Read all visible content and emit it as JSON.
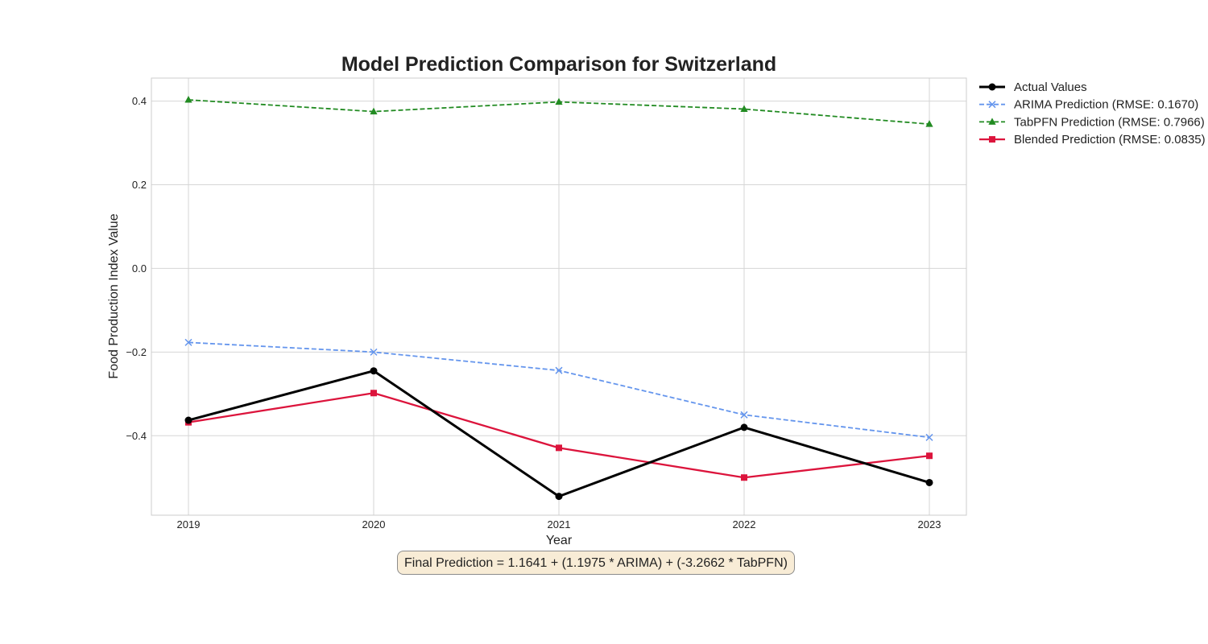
{
  "chart_data": {
    "type": "line",
    "title": "Model Prediction Comparison for Switzerland",
    "xlabel": "Year",
    "ylabel": "Food Production Index Value",
    "x": [
      2019,
      2020,
      2021,
      2022,
      2023
    ],
    "xticks": [
      "2019",
      "2020",
      "2021",
      "2022",
      "2023"
    ],
    "yticks": [
      "−0.4",
      "−0.2",
      "0.0",
      "0.2",
      "0.4"
    ],
    "ytick_values": [
      -0.4,
      -0.2,
      0.0,
      0.2,
      0.4
    ],
    "xlim": [
      2018.8,
      2023.2
    ],
    "ylim": [
      -0.59,
      0.455
    ],
    "grid": true,
    "legend_position": "outside-top-right",
    "series": [
      {
        "name": "Actual Values",
        "color": "#000000",
        "marker": "circle",
        "linestyle": "solid",
        "values": [
          -0.363,
          -0.245,
          -0.545,
          -0.38,
          -0.512
        ]
      },
      {
        "name": "ARIMA Prediction (RMSE: 0.1670)",
        "color": "#6495ed",
        "marker": "x",
        "linestyle": "dashed",
        "values": [
          -0.177,
          -0.2,
          -0.244,
          -0.35,
          -0.404
        ]
      },
      {
        "name": "TabPFN Prediction (RMSE: 0.7966)",
        "color": "#228b22",
        "marker": "triangle",
        "linestyle": "dashed",
        "values": [
          0.403,
          0.375,
          0.398,
          0.381,
          0.345
        ]
      },
      {
        "name": "Blended Prediction (RMSE: 0.0835)",
        "color": "#dc143c",
        "marker": "square",
        "linestyle": "solid",
        "values": [
          -0.368,
          -0.298,
          -0.429,
          -0.5,
          -0.448
        ]
      }
    ],
    "annotation": "Final Prediction = 1.1641 + (1.1975 * ARIMA) + (-3.2662 * TabPFN)"
  }
}
